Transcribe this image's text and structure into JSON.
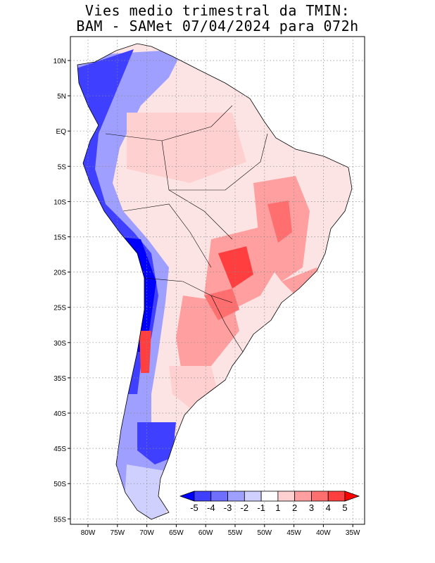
{
  "title": {
    "line1": "Vies medio trimestral da TMIN:",
    "line2": "BAM - SAMet 07/04/2024  para 072h"
  },
  "axes": {
    "lat_labels": [
      "10N",
      "5N",
      "EQ",
      "5S",
      "10S",
      "15S",
      "20S",
      "25S",
      "30S",
      "35S",
      "40S",
      "45S",
      "50S",
      "55S"
    ],
    "lon_labels": [
      "80W",
      "75W",
      "70W",
      "65W",
      "60W",
      "55W",
      "50W",
      "45W",
      "40W",
      "35W"
    ]
  },
  "colorbar": {
    "labels": [
      "-5",
      "-4",
      "-3",
      "-2",
      "-1",
      "1",
      "2",
      "3",
      "4",
      "5"
    ],
    "colors": [
      "#0000ff",
      "#3f3fff",
      "#6f6fff",
      "#9f9fff",
      "#d0d0ff",
      "#ffffff",
      "#ffd0d0",
      "#ff9f9f",
      "#ff6f6f",
      "#ff3f3f",
      "#ff0000"
    ]
  }
}
